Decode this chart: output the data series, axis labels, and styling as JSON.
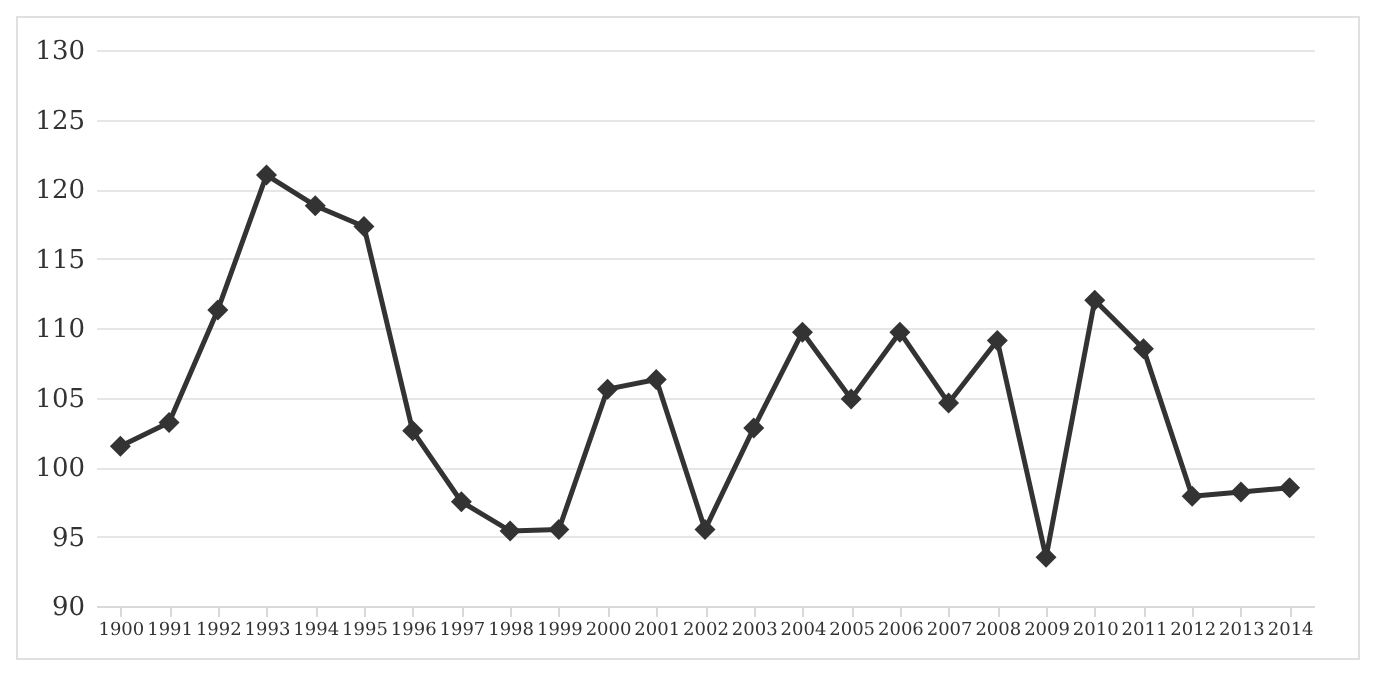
{
  "chart_data": {
    "type": "line",
    "categories": [
      "1900",
      "1991",
      "1992",
      "1993",
      "1994",
      "1995",
      "1996",
      "1997",
      "1998",
      "1999",
      "2000",
      "2001",
      "2002",
      "2003",
      "2004",
      "2005",
      "2006",
      "2007",
      "2008",
      "2009",
      "2010",
      "2011",
      "2012",
      "2013",
      "2014"
    ],
    "series": [
      {
        "color": "#333333",
        "values": [
          101.5,
          103.2,
          111.3,
          121.0,
          118.8,
          117.3,
          102.6,
          97.5,
          95.4,
          95.5,
          105.6,
          106.3,
          95.5,
          102.8,
          109.7,
          104.9,
          109.7,
          104.6,
          109.1,
          93.5,
          112.0,
          108.5,
          97.9,
          98.2,
          98.5
        ]
      }
    ],
    "ylim": [
      90,
      130
    ],
    "yticks": [
      90,
      95,
      100,
      105,
      110,
      115,
      120,
      125,
      130
    ],
    "grid": "y",
    "marker": "diamond",
    "line_style": "solid",
    "legend": false
  }
}
